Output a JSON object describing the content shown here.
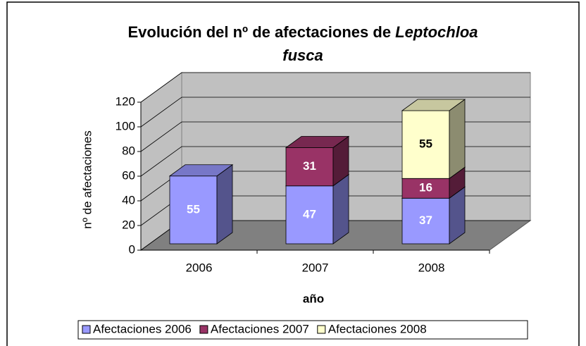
{
  "chart_data": {
    "type": "bar3d_stacked",
    "title": [
      "Evolución del nº de afectaciones de",
      "Leptochloa",
      "fusca"
    ],
    "title_italic": [
      false,
      true,
      true
    ],
    "x_label": "año",
    "y_label": "nº de afectaciones",
    "categories": [
      "2006",
      "2007",
      "2008"
    ],
    "series": [
      {
        "name": "Afectaciones 2006",
        "color": "#9999ff",
        "values": [
          55,
          47,
          37
        ]
      },
      {
        "name": "Afectaciones 2007",
        "color": "#993366",
        "values": [
          null,
          31,
          16
        ]
      },
      {
        "name": "Afectaciones 2008",
        "color": "#ffffcc",
        "values": [
          null,
          null,
          55
        ]
      }
    ],
    "ylim": [
      0,
      120
    ],
    "yticks": [
      0,
      20,
      40,
      60,
      80,
      100,
      120
    ],
    "grid": true,
    "legend": "bottom"
  }
}
